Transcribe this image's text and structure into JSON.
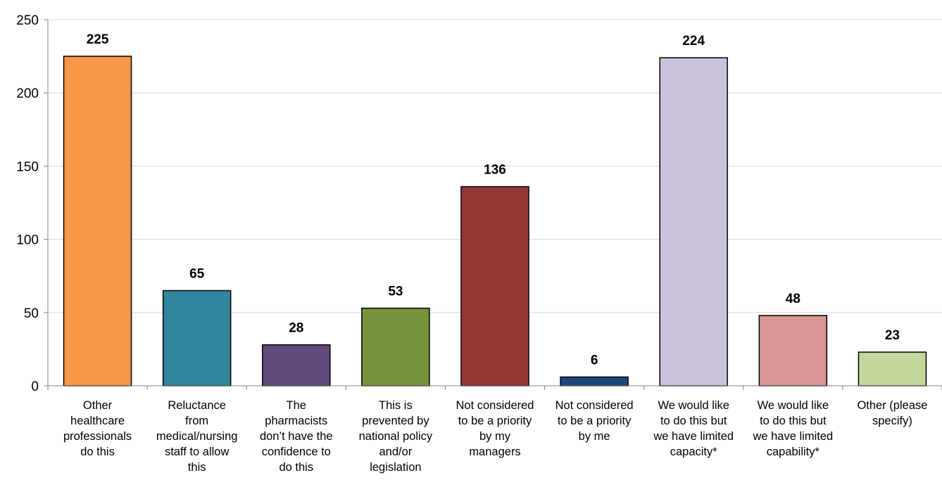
{
  "chart_data": {
    "type": "bar",
    "title": "",
    "xlabel": "",
    "ylabel": "",
    "ylim": [
      0,
      250
    ],
    "yticks": [
      0,
      50,
      100,
      150,
      200,
      250
    ],
    "grid": true,
    "legend": "none",
    "categories": [
      [
        "Other",
        "healthcare",
        "professionals",
        "do this"
      ],
      [
        "Reluctance",
        "from",
        "medical/nursing",
        "staff to allow",
        "this"
      ],
      [
        "The",
        "pharmacists",
        "don’t have the",
        "confidence to",
        "do this"
      ],
      [
        "This is",
        "prevented by",
        "national policy",
        "and/or",
        "legislation"
      ],
      [
        "Not considered",
        "to be a priority",
        "by my",
        "managers"
      ],
      [
        "Not considered",
        "to be a priority",
        "by me"
      ],
      [
        "We would like",
        "to do this but",
        "we have limited",
        "capacity*"
      ],
      [
        "We would like",
        "to do this but",
        "we have limited",
        "capability*"
      ],
      [
        "Other (please",
        "specify)"
      ]
    ],
    "values": [
      225,
      65,
      28,
      53,
      136,
      6,
      224,
      48,
      23
    ],
    "colors": [
      "#F79646",
      "#31859C",
      "#604A7B",
      "#77933C",
      "#953735",
      "#1F497D",
      "#CCC1DA",
      "#D99694",
      "#C3D69B"
    ]
  }
}
